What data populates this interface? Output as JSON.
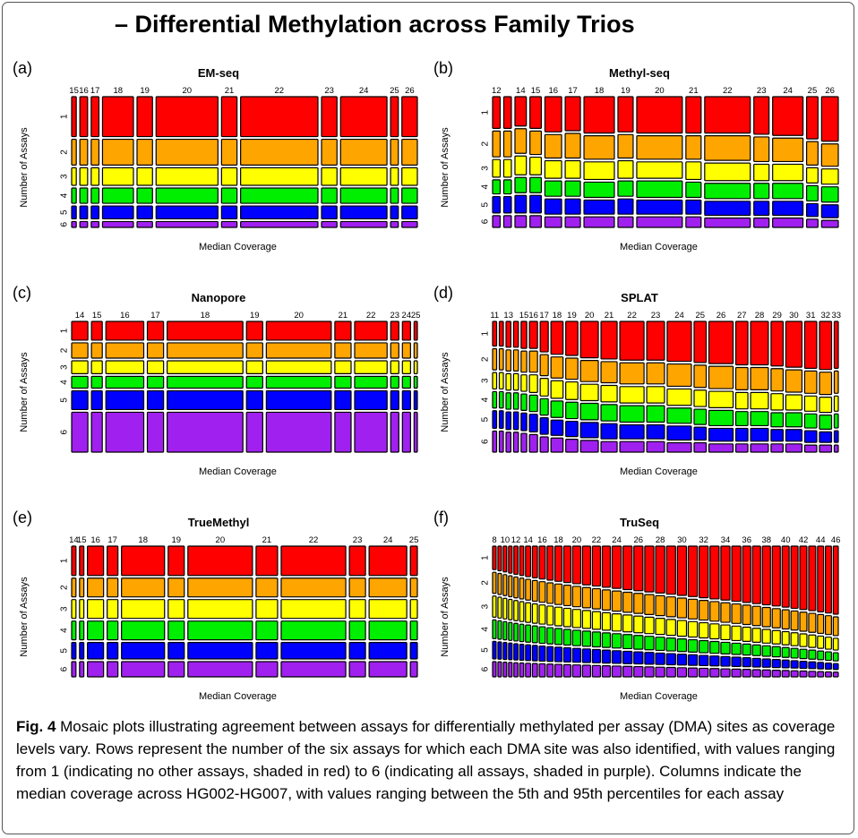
{
  "page_title": "– Differential Methylation across Family Trios",
  "caption": {
    "label": "Fig. 4",
    "text": " Mosaic plots illustrating agreement between assays for differentially methylated per assay (DMA) sites as coverage levels vary. Rows represent the number of the six assays for which each DMA site was also identified, with values ranging from 1 (indicating no other assays, shaded in red) to 6 (indicating all assays, shaded in purple). Columns indicate the median coverage across HG002-HG007, with values ranging between the 5th and 95th percentiles for each assay"
  },
  "colors": {
    "row_colors": [
      "#ff0000",
      "#ffa500",
      "#ffff00",
      "#00ee00",
      "#0000ff",
      "#a020f0"
    ]
  },
  "chart_data": [
    {
      "type": "mosaic",
      "panel": "(a)",
      "title": "EM-seq",
      "xlabel": "Median Coverage",
      "ylabel": "Number of Assays",
      "row_labels": [
        "1",
        "2",
        "3",
        "4",
        "5",
        "6"
      ],
      "categories": [
        "15",
        "16",
        "17",
        "18",
        "19",
        "20",
        "21",
        "22",
        "23",
        "24",
        "25",
        "26"
      ],
      "column_widths": [
        0.6,
        1,
        1,
        4,
        2,
        8,
        2,
        10,
        2,
        6,
        1,
        2
      ],
      "row_fractions": [
        0.34,
        0.22,
        0.15,
        0.13,
        0.11,
        0.05
      ],
      "row_fraction_by_column": null
    },
    {
      "type": "mosaic",
      "panel": "(b)",
      "title": "Methyl-seq",
      "xlabel": "Median Coverage",
      "ylabel": "Number of Assays",
      "row_labels": [
        "1",
        "2",
        "3",
        "4",
        "5",
        "6"
      ],
      "categories": [
        "12",
        "",
        "14",
        "15",
        "16",
        "17",
        "18",
        "19",
        "20",
        "21",
        "22",
        "23",
        "24",
        "25",
        "26"
      ],
      "column_widths": [
        1,
        1,
        1.5,
        1.5,
        2.2,
        2,
        4,
        2,
        6,
        2,
        6,
        2,
        4,
        1.5,
        2.2
      ],
      "row_fraction_by_column": [
        [
          0.27,
          0.22,
          0.15,
          0.12,
          0.14,
          0.1
        ],
        [
          0.27,
          0.22,
          0.15,
          0.12,
          0.14,
          0.1
        ],
        [
          0.25,
          0.21,
          0.16,
          0.13,
          0.15,
          0.1
        ],
        [
          0.27,
          0.2,
          0.15,
          0.13,
          0.15,
          0.1
        ],
        [
          0.3,
          0.2,
          0.15,
          0.13,
          0.13,
          0.09
        ],
        [
          0.29,
          0.21,
          0.15,
          0.13,
          0.13,
          0.09
        ],
        [
          0.31,
          0.2,
          0.15,
          0.13,
          0.12,
          0.09
        ],
        [
          0.3,
          0.2,
          0.15,
          0.13,
          0.13,
          0.09
        ],
        [
          0.31,
          0.2,
          0.14,
          0.14,
          0.12,
          0.09
        ],
        [
          0.31,
          0.2,
          0.15,
          0.13,
          0.12,
          0.09
        ],
        [
          0.31,
          0.21,
          0.15,
          0.13,
          0.12,
          0.08
        ],
        [
          0.32,
          0.21,
          0.14,
          0.13,
          0.12,
          0.08
        ],
        [
          0.33,
          0.2,
          0.14,
          0.13,
          0.12,
          0.08
        ],
        [
          0.36,
          0.2,
          0.13,
          0.13,
          0.11,
          0.07
        ],
        [
          0.38,
          0.19,
          0.13,
          0.13,
          0.11,
          0.06
        ]
      ]
    },
    {
      "type": "mosaic",
      "panel": "(c)",
      "title": "Nanopore",
      "xlabel": "Median Coverage",
      "ylabel": "Number of Assays",
      "row_labels": [
        "1",
        "2",
        "3",
        "4",
        "5",
        "6"
      ],
      "categories": [
        "14",
        "15",
        "16",
        "17",
        "18",
        "19",
        "20",
        "21",
        "22",
        "23",
        "24",
        "25"
      ],
      "column_widths": [
        3,
        2,
        7,
        3,
        14,
        3,
        12,
        3,
        6,
        1.5,
        1.5,
        0.6
      ],
      "row_fractions": [
        0.16,
        0.13,
        0.11,
        0.1,
        0.16,
        0.34
      ],
      "row_fraction_by_column": null
    },
    {
      "type": "mosaic",
      "panel": "(d)",
      "title": "SPLAT",
      "xlabel": "Median Coverage",
      "ylabel": "Number of Assays",
      "row_labels": [
        "1",
        "2",
        "3",
        "4",
        "5",
        "6"
      ],
      "categories": [
        "11",
        "",
        "13",
        "",
        "15",
        "16",
        "17",
        "18",
        "19",
        "20",
        "21",
        "22",
        "23",
        "24",
        "25",
        "26",
        "27",
        "28",
        "29",
        "30",
        "31",
        "32",
        "33"
      ],
      "column_widths": [
        0.5,
        0.5,
        0.6,
        0.6,
        0.7,
        1,
        1,
        1.5,
        1.5,
        2.2,
        2,
        3,
        2.2,
        3,
        1.5,
        3,
        1.5,
        2.2,
        1.5,
        2,
        1.5,
        1.5,
        0.5
      ],
      "row_fraction_by_column": [
        [
          0.21,
          0.18,
          0.14,
          0.14,
          0.15,
          0.18
        ],
        [
          0.21,
          0.18,
          0.14,
          0.14,
          0.15,
          0.18
        ],
        [
          0.22,
          0.18,
          0.14,
          0.14,
          0.15,
          0.17
        ],
        [
          0.22,
          0.18,
          0.14,
          0.14,
          0.15,
          0.17
        ],
        [
          0.23,
          0.18,
          0.14,
          0.14,
          0.15,
          0.16
        ],
        [
          0.23,
          0.18,
          0.15,
          0.14,
          0.15,
          0.15
        ],
        [
          0.26,
          0.18,
          0.15,
          0.14,
          0.14,
          0.13
        ],
        [
          0.28,
          0.18,
          0.15,
          0.14,
          0.13,
          0.12
        ],
        [
          0.29,
          0.18,
          0.15,
          0.14,
          0.13,
          0.11
        ],
        [
          0.31,
          0.18,
          0.14,
          0.14,
          0.13,
          0.1
        ],
        [
          0.32,
          0.18,
          0.14,
          0.14,
          0.13,
          0.09
        ],
        [
          0.33,
          0.18,
          0.14,
          0.14,
          0.12,
          0.09
        ],
        [
          0.33,
          0.18,
          0.14,
          0.14,
          0.12,
          0.09
        ],
        [
          0.34,
          0.19,
          0.14,
          0.13,
          0.12,
          0.08
        ],
        [
          0.35,
          0.19,
          0.14,
          0.13,
          0.11,
          0.08
        ],
        [
          0.36,
          0.19,
          0.14,
          0.13,
          0.11,
          0.07
        ],
        [
          0.37,
          0.19,
          0.14,
          0.12,
          0.11,
          0.07
        ],
        [
          0.37,
          0.19,
          0.14,
          0.12,
          0.11,
          0.07
        ],
        [
          0.38,
          0.19,
          0.14,
          0.12,
          0.1,
          0.07
        ],
        [
          0.39,
          0.19,
          0.13,
          0.12,
          0.1,
          0.07
        ],
        [
          0.4,
          0.19,
          0.13,
          0.12,
          0.1,
          0.06
        ],
        [
          0.41,
          0.19,
          0.13,
          0.12,
          0.09,
          0.06
        ],
        [
          0.4,
          0.19,
          0.13,
          0.12,
          0.1,
          0.06
        ]
      ]
    },
    {
      "type": "mosaic",
      "panel": "(e)",
      "title": "TrueMethyl",
      "xlabel": "Median Coverage",
      "ylabel": "Number of Assays",
      "row_labels": [
        "1",
        "2",
        "3",
        "4",
        "5",
        "6"
      ],
      "categories": [
        "14",
        "15",
        "16",
        "17",
        "18",
        "19",
        "20",
        "21",
        "22",
        "23",
        "24",
        "25"
      ],
      "column_widths": [
        0.8,
        0.8,
        3,
        2,
        8,
        3,
        12,
        4,
        12,
        3,
        7,
        1.3
      ],
      "row_fractions": [
        0.25,
        0.16,
        0.16,
        0.16,
        0.14,
        0.13
      ],
      "row_fraction_by_column": null
    },
    {
      "type": "mosaic",
      "panel": "(f)",
      "title": "TruSeq",
      "xlabel": "Median Coverage",
      "ylabel": "Number of Assays",
      "row_labels": [
        "1",
        "2",
        "3",
        "4",
        "5",
        "6"
      ],
      "categories": [
        "8",
        "",
        "10",
        "",
        "12",
        "",
        "14",
        "",
        "16",
        "",
        "18",
        "",
        "20",
        "",
        "22",
        "",
        "24",
        "",
        "26",
        "",
        "28",
        "",
        "30",
        "",
        "32",
        "",
        "34",
        "",
        "36",
        "",
        "38",
        "",
        "40",
        "",
        "42",
        "",
        "44",
        "",
        "46"
      ],
      "column_widths": [
        0.35,
        0.35,
        0.35,
        0.35,
        0.4,
        0.4,
        0.5,
        0.5,
        0.6,
        0.6,
        0.7,
        0.7,
        0.8,
        0.8,
        0.8,
        0.8,
        0.9,
        0.9,
        0.9,
        0.9,
        0.9,
        0.9,
        0.9,
        0.9,
        0.9,
        0.9,
        0.9,
        0.9,
        0.8,
        0.8,
        0.8,
        0.8,
        0.7,
        0.7,
        0.7,
        0.7,
        0.6,
        0.6,
        0.5
      ],
      "row_fraction_by_column": "trend",
      "trend_start": [
        0.2,
        0.18,
        0.18,
        0.16,
        0.15,
        0.13
      ],
      "trend_end": [
        0.58,
        0.16,
        0.1,
        0.07,
        0.05,
        0.04
      ]
    }
  ]
}
